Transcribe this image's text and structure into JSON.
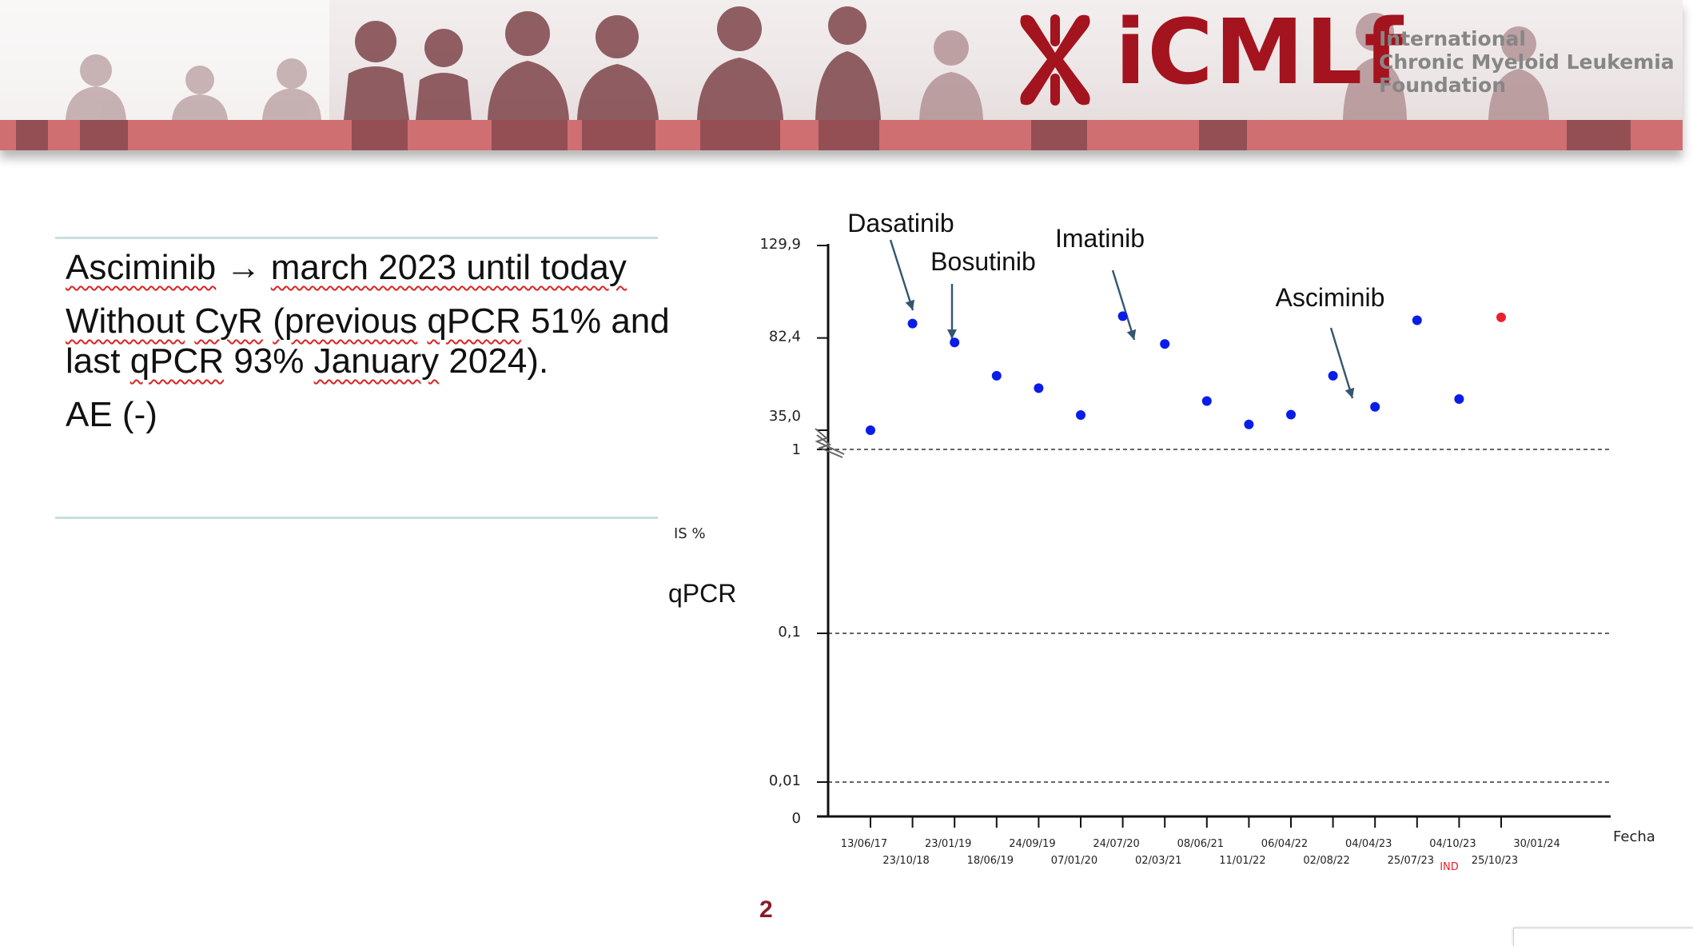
{
  "header": {
    "logo_text": "iCMLf",
    "org_name_lines": [
      "International",
      "Chronic Myeloid Leukemia",
      "Foundation"
    ]
  },
  "text": {
    "line1": {
      "part_a": "Asciminib",
      "arrow": "→",
      "part_b": "march 2023 until today"
    },
    "line2": {
      "t1": "Without",
      "t2": "CyR",
      "t3": "(previous",
      "t4": "qPCR",
      "t5": "51%",
      "t6": "and last",
      "t7": "qPCR",
      "t8": "93%",
      "t9": "January",
      "t10": "2024)."
    },
    "line3": "AE (-)"
  },
  "page_number": "2",
  "chart_data": {
    "type": "scatter",
    "ylabel_unit": "IS %",
    "ylabel": "qPCR",
    "xlabel": "Fecha",
    "y_scale": "broken: log (0–1) below break, linear (35,0–129,9) above break",
    "y_ticks": [
      "0",
      "0,01",
      "0,1",
      "1",
      "35,0",
      "82,4",
      "129,9"
    ],
    "gridlines_dashed_at": [
      0.01,
      0.1,
      1
    ],
    "x_ticks_upper": [
      "13/06/17",
      "23/01/19",
      "24/09/19",
      "24/07/20",
      "08/06/21",
      "06/04/22",
      "04/04/23",
      "04/10/23",
      "30/01/24"
    ],
    "x_ticks_lower": [
      "23/10/18",
      "18/06/19",
      "07/01/20",
      "02/03/21",
      "11/01/22",
      "02/08/22",
      "25/07/23",
      "25/10/23"
    ],
    "ind_label": "IND",
    "points": [
      {
        "date": "13/06/17",
        "value": 35.0,
        "color": "#0a1de8"
      },
      {
        "date": "23/10/18",
        "value": 89.8,
        "color": "#0a1de8"
      },
      {
        "date": "23/01/19",
        "value": 80.1,
        "color": "#0a1de8"
      },
      {
        "date": "18/06/19",
        "value": 63.0,
        "color": "#0a1de8"
      },
      {
        "date": "24/09/19",
        "value": 56.6,
        "color": "#0a1de8"
      },
      {
        "date": "07/01/20",
        "value": 42.8,
        "color": "#0a1de8"
      },
      {
        "date": "24/07/20",
        "value": 93.6,
        "color": "#0a1de8"
      },
      {
        "date": "02/03/21",
        "value": 79.3,
        "color": "#0a1de8"
      },
      {
        "date": "08/06/21",
        "value": 50.0,
        "color": "#0a1de8"
      },
      {
        "date": "11/01/22",
        "value": 38.0,
        "color": "#0a1de8"
      },
      {
        "date": "06/04/22",
        "value": 43.0,
        "color": "#0a1de8"
      },
      {
        "date": "02/08/22",
        "value": 63.0,
        "color": "#0a1de8"
      },
      {
        "date": "04/04/23",
        "value": 47.0,
        "color": "#0a1de8"
      },
      {
        "date": "25/07/23",
        "value": 91.5,
        "color": "#0a1de8"
      },
      {
        "date": "25/10/23",
        "value": 51.0,
        "color": "#0a1de8"
      },
      {
        "date": "30/01/24",
        "value": 93.0,
        "color": "#e8202a"
      }
    ],
    "annotations": [
      {
        "text": "Dasatinib",
        "points_to": "23/10/18"
      },
      {
        "text": "Bosutinib",
        "points_to": "23/01/19"
      },
      {
        "text": "Imatinib",
        "points_to": "24/07/20"
      },
      {
        "text": "Asciminib",
        "points_to": "04/04/23"
      }
    ]
  }
}
